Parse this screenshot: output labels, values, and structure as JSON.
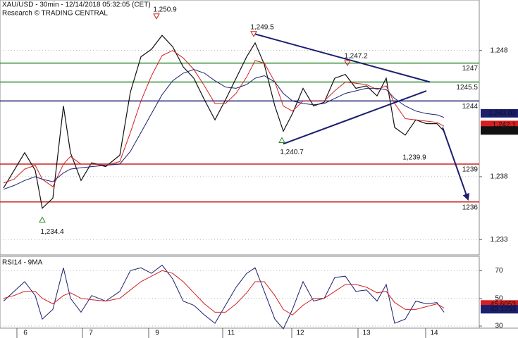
{
  "chart_data": [
    {
      "type": "line",
      "title": "XAU/USD - 30min - 12/14/2018 05:32:05 (CET)",
      "subtitle": "Research © TRADING CENTRAL",
      "xlim": [
        0,
        170
      ],
      "ylim": [
        1231.8,
        1252
      ],
      "yticks": [
        {
          "value": 1248,
          "label": "1,248"
        },
        {
          "value": 1238,
          "label": "1,238"
        },
        {
          "value": 1233,
          "label": "1,233"
        }
      ],
      "grid": true,
      "x": [
        1.25,
        5,
        8.75,
        12.5,
        15,
        18.75,
        22.5,
        25,
        28.75,
        32.5,
        37.5,
        42.5,
        46.25,
        50,
        53.75,
        57.5,
        61.25,
        65,
        68.75,
        72.5,
        76.25,
        80,
        83.75,
        87.5,
        90.5,
        93.75,
        97.5,
        100.5,
        103.75,
        107.5,
        111.25,
        115,
        118.75,
        122.5,
        126.25,
        130,
        133.75,
        137,
        140,
        143.75,
        147.5,
        151.25,
        155,
        157.5
      ],
      "series": [
        {
          "name": "XAU/USD",
          "color": "#111111",
          "values": [
            1237.1,
            1238.5,
            1239.9,
            1238.5,
            1235.5,
            1236.3,
            1243.6,
            1239.9,
            1237.7,
            1239.1,
            1238.8,
            1239.7,
            1244.7,
            1247.5,
            1248.1,
            1249.2,
            1248.3,
            1246.7,
            1245.8,
            1244.1,
            1242.5,
            1244.1,
            1245.8,
            1247.5,
            1248.6,
            1246.9,
            1243.6,
            1241.6,
            1243.0,
            1245.0,
            1243.6,
            1243.9,
            1245.8,
            1246.1,
            1245.0,
            1245.2,
            1244.4,
            1245.8,
            1241.9,
            1241.3,
            1242.5,
            1242.2,
            1242.2,
            1241.6
          ]
        },
        {
          "color": "#d42020",
          "values": [
            1237.5,
            1237.8,
            1238.6,
            1238.9,
            1237.8,
            1237.2,
            1239.0,
            1239.6,
            1239.0,
            1239.0,
            1238.9,
            1239.2,
            1241.5,
            1244.0,
            1246.0,
            1247.6,
            1248.0,
            1247.4,
            1246.5,
            1245.2,
            1243.8,
            1243.8,
            1244.6,
            1245.9,
            1247.2,
            1247.0,
            1245.5,
            1243.6,
            1243.2,
            1244.0,
            1244.0,
            1244.0,
            1244.8,
            1245.5,
            1245.4,
            1245.3,
            1244.9,
            1245.2,
            1243.8,
            1242.6,
            1242.5,
            1242.4,
            1242.3,
            1242.0
          ]
        },
        {
          "color": "#1a1f6e",
          "values": [
            1237.0,
            1237.3,
            1237.7,
            1238.0,
            1237.8,
            1237.6,
            1238.3,
            1238.6,
            1238.7,
            1238.8,
            1238.9,
            1239.0,
            1240.0,
            1241.5,
            1243.0,
            1244.5,
            1245.6,
            1246.2,
            1246.5,
            1246.2,
            1245.6,
            1245.1,
            1245.0,
            1245.3,
            1245.8,
            1246.0,
            1245.5,
            1244.6,
            1244.0,
            1243.8,
            1243.7,
            1243.8,
            1244.2,
            1244.6,
            1244.8,
            1245.0,
            1245.0,
            1244.9,
            1244.2,
            1243.6,
            1243.2,
            1243.0,
            1242.9,
            1242.7
          ]
        }
      ],
      "levels": [
        {
          "value": 1247,
          "color": "#2e8b2e"
        },
        {
          "value": 1245.5,
          "color": "#2e8b2e"
        },
        {
          "value": 1244,
          "color": "#1a1f6e"
        },
        {
          "value": 1239,
          "color": "#cc2222"
        },
        {
          "value": 1236,
          "color": "#cc2222"
        }
      ],
      "trendlines": [
        {
          "x": [
            90.5,
            152.5
          ],
          "y": [
            1249.3,
            1245.5
          ],
          "color": "#1a1f6e"
        },
        {
          "x": [
            100.5,
            151.25
          ],
          "y": [
            1240.6,
            1244.8
          ],
          "color": "#1a1f6e"
        },
        {
          "x": [
            157,
            166
          ],
          "y": [
            1241.9,
            1236.2
          ],
          "color": "#1a1f6e",
          "arrow": true
        }
      ],
      "annotations": [
        {
          "x": 55.5,
          "y": 1250.9,
          "label": "1,250.9",
          "marker": "down"
        },
        {
          "x": 90,
          "y": 1249.5,
          "label": "1,249.5",
          "marker": "down"
        },
        {
          "x": 123.25,
          "y": 1247.2,
          "label": "1,247.2",
          "marker": "down"
        },
        {
          "x": 100,
          "y": 1240.7,
          "label": "1,240.7",
          "marker": "up"
        },
        {
          "x": 147,
          "y": 1239.9,
          "label": "1,239.9"
        },
        {
          "x": 15,
          "y": 1234.4,
          "label": "1,234.4",
          "marker": "up"
        }
      ],
      "value_tags": [
        {
          "value": 1243.02,
          "label": "1,243.02",
          "color": "#1a1f6e"
        },
        {
          "value": 1242.1,
          "label": "1,242.1",
          "color": "#d42020"
        },
        {
          "value": 1241.66,
          "label": "1,241.66",
          "color": "#111111"
        }
      ]
    },
    {
      "type": "line",
      "title": "RSI14 - 9MA",
      "xlim": [
        0,
        170
      ],
      "ylim": [
        28.5,
        80.3
      ],
      "yticks": [
        70,
        50,
        30
      ],
      "grid": true,
      "x": [
        1.25,
        5,
        8.75,
        12.5,
        15,
        18.75,
        22.5,
        25,
        28.75,
        32.5,
        37.5,
        42.5,
        46.25,
        50,
        53.75,
        57.5,
        61.25,
        65,
        68.75,
        72.5,
        76.25,
        80,
        83.75,
        87.5,
        90.5,
        93.75,
        97.5,
        100.5,
        103.75,
        107.5,
        111.25,
        115,
        118.75,
        122.5,
        126.25,
        130,
        133.75,
        137,
        140,
        143.75,
        147.5,
        151.25,
        155,
        157.5
      ],
      "xticks": [
        {
          "value": 6,
          "label": "6"
        },
        {
          "value": 29.25,
          "label": "7"
        },
        {
          "value": 52.75,
          "label": "9"
        },
        {
          "value": 79,
          "label": "11"
        },
        {
          "value": 103.5,
          "label": "12"
        },
        {
          "value": 127,
          "label": "13"
        },
        {
          "value": 151,
          "label": "14"
        }
      ],
      "series": [
        {
          "color": "#1a1f6e",
          "values": [
            48,
            55,
            62,
            52,
            35,
            42,
            72,
            50,
            40,
            52,
            48,
            55,
            70,
            72,
            68,
            74,
            64,
            48,
            45,
            38,
            32,
            45,
            58,
            68,
            72,
            55,
            35,
            28,
            42,
            62,
            48,
            50,
            65,
            66,
            55,
            56,
            48,
            60,
            32,
            35,
            48,
            46,
            47,
            40
          ]
        },
        {
          "color": "#d42020",
          "values": [
            50,
            52,
            55,
            55,
            50,
            46,
            52,
            54,
            50,
            49,
            48,
            50,
            56,
            62,
            66,
            70,
            68,
            62,
            54,
            46,
            40,
            40,
            46,
            54,
            62,
            62,
            52,
            42,
            38,
            45,
            50,
            50,
            55,
            60,
            60,
            58,
            54,
            55,
            47,
            42,
            42,
            44,
            46,
            43
          ]
        }
      ],
      "value_tags": [
        {
          "value": 45.6053,
          "color": "#d42020"
        },
        {
          "value": 42.1253,
          "color": "#1a1f6e"
        }
      ]
    }
  ]
}
